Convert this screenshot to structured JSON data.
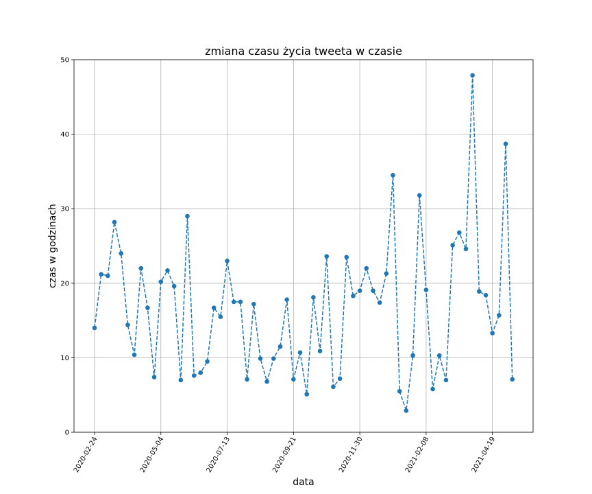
{
  "chart_data": {
    "type": "line",
    "title": "zmiana czasu życia tweeta w czasie",
    "xlabel": "data",
    "ylabel": "czas w godzinach",
    "ylim": [
      0,
      50
    ],
    "yticks": [
      "0",
      "10",
      "20",
      "30",
      "40",
      "50"
    ],
    "xticks": [
      "2020-02-24",
      "2020-05-04",
      "2020-07-13",
      "2020-09-21",
      "2020-11-30",
      "2021-02-08",
      "2021-04-19"
    ],
    "x": [
      "2020-02-24",
      "2020-03-02",
      "2020-03-09",
      "2020-03-16",
      "2020-03-23",
      "2020-03-30",
      "2020-04-06",
      "2020-04-13",
      "2020-04-20",
      "2020-04-27",
      "2020-05-04",
      "2020-05-11",
      "2020-05-18",
      "2020-05-25",
      "2020-06-01",
      "2020-06-08",
      "2020-06-15",
      "2020-06-22",
      "2020-06-29",
      "2020-07-06",
      "2020-07-13",
      "2020-07-20",
      "2020-07-27",
      "2020-08-03",
      "2020-08-10",
      "2020-08-17",
      "2020-08-24",
      "2020-08-31",
      "2020-09-07",
      "2020-09-14",
      "2020-09-21",
      "2020-09-28",
      "2020-10-05",
      "2020-10-12",
      "2020-10-19",
      "2020-10-26",
      "2020-11-02",
      "2020-11-09",
      "2020-11-16",
      "2020-11-23",
      "2020-11-30",
      "2020-12-07",
      "2020-12-14",
      "2020-12-21",
      "2020-12-28",
      "2021-01-04",
      "2021-01-11",
      "2021-01-18",
      "2021-01-25",
      "2021-02-01",
      "2021-02-08",
      "2021-02-15",
      "2021-02-22",
      "2021-03-01",
      "2021-03-08",
      "2021-03-15",
      "2021-03-22",
      "2021-03-29",
      "2021-04-05",
      "2021-04-12",
      "2021-04-19",
      "2021-04-26",
      "2021-05-03",
      "2021-05-10"
    ],
    "series": [
      {
        "color": "#1f77b4",
        "linestyle": "dashed",
        "marker": "circle",
        "values": [
          14.0,
          21.2,
          21.0,
          28.2,
          24.0,
          14.4,
          10.4,
          22.0,
          16.7,
          7.4,
          20.2,
          21.7,
          19.6,
          7.0,
          29.0,
          7.6,
          8.0,
          9.5,
          16.7,
          15.5,
          23.0,
          17.5,
          17.5,
          7.1,
          17.2,
          9.9,
          6.8,
          9.9,
          11.5,
          17.8,
          7.1,
          10.7,
          5.1,
          18.1,
          10.9,
          23.6,
          6.1,
          7.2,
          23.5,
          18.3,
          19.0,
          22.0,
          19.0,
          17.4,
          21.3,
          34.5,
          5.5,
          2.9,
          10.3,
          31.8,
          19.1,
          5.8,
          10.3,
          7.0,
          25.1,
          26.8,
          24.6,
          47.9,
          18.9,
          18.4,
          13.3,
          15.7,
          38.7,
          7.1
        ]
      }
    ],
    "grid": true
  }
}
